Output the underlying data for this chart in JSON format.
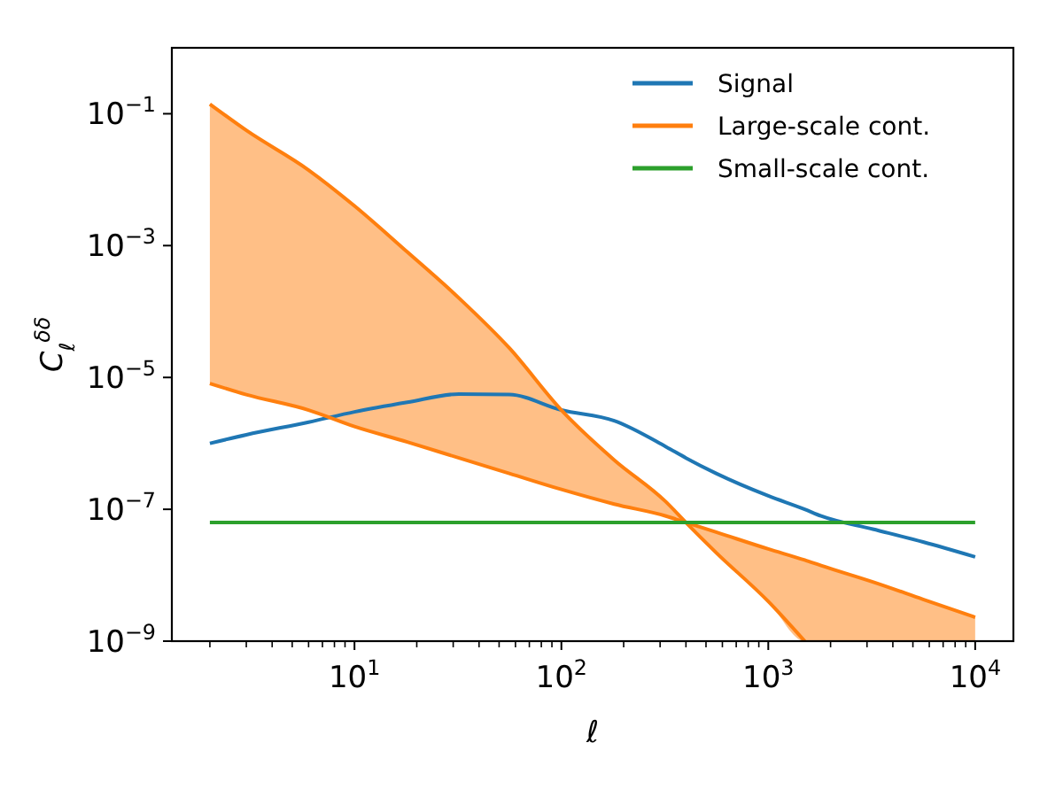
{
  "chart_data": {
    "type": "line",
    "xlabel": "ℓ",
    "ylabel": "C$_{ℓ}$$^{δδ}$",
    "log": "xy",
    "legend": "top right",
    "x": [
      2,
      3,
      6,
      10,
      18,
      32,
      56,
      100,
      180,
      320,
      400,
      560,
      1000,
      1500,
      1800,
      3200,
      5600,
      10000
    ],
    "xlim": [
      1.31,
      15300
    ],
    "xticks": [
      {
        "value": 10,
        "label": "10$^{1}$"
      },
      {
        "value": 100,
        "label": "10$^{2}$"
      },
      {
        "value": 1000,
        "label": "10$^{3}$"
      },
      {
        "value": 10000,
        "label": "10$^{4}$"
      }
    ],
    "ylim": [
      1e-09,
      1
    ],
    "yticks": [
      {
        "value": 1e-09,
        "label": "10$^{−9}$"
      },
      {
        "value": 1e-07,
        "label": "10$^{−7}$"
      },
      {
        "value": 1e-05,
        "label": "10$^{−5}$"
      },
      {
        "value": 0.001,
        "label": "10$^{−3}$"
      },
      {
        "value": 0.1,
        "label": "10$^{−1}$"
      }
    ],
    "series": [
      {
        "name": "Signal",
        "color": "#1f77b4",
        "values": [
          1e-06,
          1.35e-06,
          2.1e-06,
          3e-06,
          4.2e-06,
          5.6e-06,
          5.5e-06,
          3.2e-06,
          2.2e-06,
          8.9e-07,
          6e-07,
          3.5e-07,
          1.6e-07,
          1e-07,
          7.9e-08,
          5e-08,
          3.2e-08,
          1.9e-08
        ]
      },
      {
        "name": "Large-scale cont.",
        "color": "#ff7f0e",
        "values": [
          0.14,
          0.056,
          0.014,
          0.004,
          0.0008,
          0.00016,
          2.8e-05,
          3.2e-06,
          5.6e-07,
          1.3e-07,
          6.3e-08,
          2.2e-08,
          4e-09,
          1e-09,
          null,
          null,
          null,
          null
        ],
        "lower": [
          8.1e-06,
          5.5e-06,
          3.2e-06,
          1.8e-06,
          1.05e-06,
          6e-07,
          3.5e-07,
          2e-07,
          1.2e-07,
          7.9e-08,
          6.3e-08,
          2.2e-08,
          4e-09,
          1e-09,
          1e-09,
          1e-09,
          1e-09,
          1e-09
        ],
        "upper": [
          0.14,
          0.056,
          0.014,
          0.004,
          0.0008,
          0.00016,
          2.8e-05,
          3.2e-06,
          5.6e-07,
          1.3e-07,
          6.3e-08,
          4.5e-08,
          2.5e-08,
          1.7e-08,
          1.4e-08,
          7.9e-09,
          4.3e-09,
          2.3e-09
        ]
      },
      {
        "color": "#ff7f0e",
        "values": [
          8.1e-06,
          5.5e-06,
          3.2e-06,
          1.8e-06,
          1.05e-06,
          6e-07,
          3.5e-07,
          2e-07,
          1.2e-07,
          7.9e-08,
          6.3e-08,
          4.5e-08,
          2.5e-08,
          1.7e-08,
          1.4e-08,
          7.9e-09,
          4.3e-09,
          2.3e-09
        ]
      },
      {
        "name": "Small-scale cont.",
        "color": "#2ca02c",
        "values": [
          6.3e-08,
          6.3e-08,
          6.3e-08,
          6.3e-08,
          6.3e-08,
          6.3e-08,
          6.3e-08,
          6.3e-08,
          6.3e-08,
          6.3e-08,
          6.3e-08,
          6.3e-08,
          6.3e-08,
          6.3e-08,
          6.3e-08,
          6.3e-08,
          6.3e-08,
          6.3e-08
        ]
      }
    ]
  }
}
